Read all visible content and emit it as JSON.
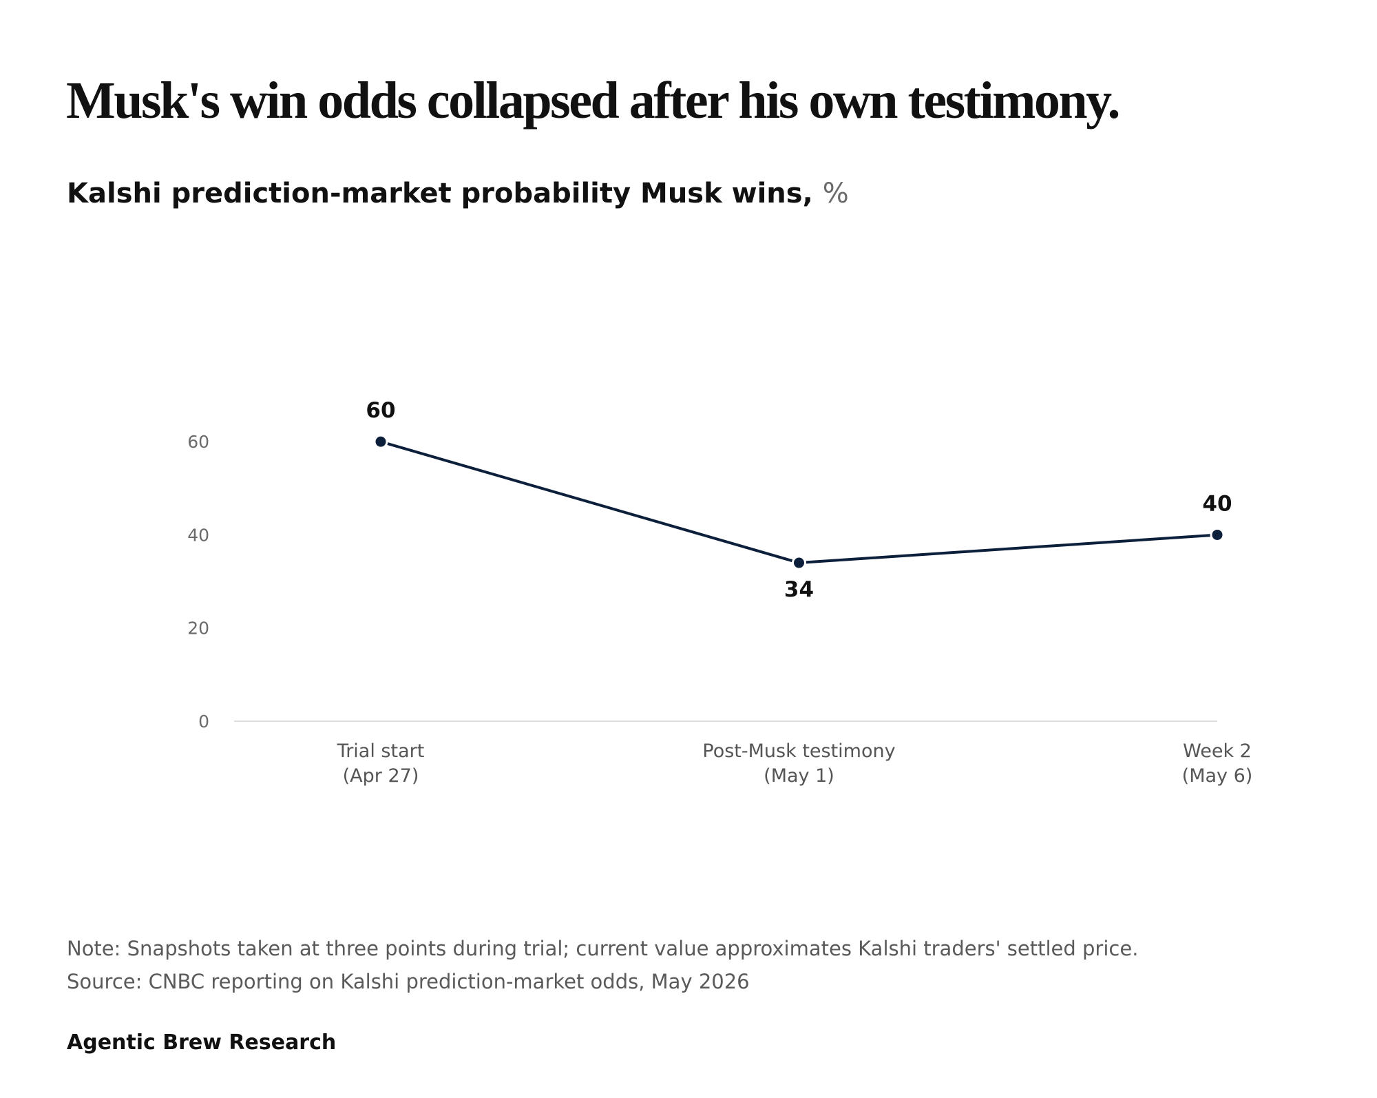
{
  "headline": "Musk's win odds collapsed after his own testimony.",
  "subtitle": "Kalshi prediction-market probability Musk wins,",
  "subtitle_unit": "%",
  "note": "Note: Snapshots taken at three points during trial; current value approximates Kalshi traders' settled price.",
  "source": "Source: CNBC reporting on Kalshi prediction-market odds, May 2026",
  "brand": "Agentic Brew Research",
  "colors": {
    "line": "#0c1f3b",
    "baseline": "#dddddd"
  },
  "chart_data": {
    "type": "line",
    "categories": [
      [
        "Trial start",
        "(Apr 27)"
      ],
      [
        "Post-Musk testimony",
        "(May 1)"
      ],
      [
        "Week 2",
        "(May 6)"
      ]
    ],
    "series": [
      {
        "values": [
          60,
          34,
          40
        ],
        "labels": [
          "60",
          "34",
          "40"
        ],
        "label_positions": [
          "above",
          "below",
          "above"
        ]
      }
    ],
    "yticks": [
      0,
      20,
      40,
      60
    ],
    "ylim": [
      0,
      72
    ],
    "grid": false
  }
}
